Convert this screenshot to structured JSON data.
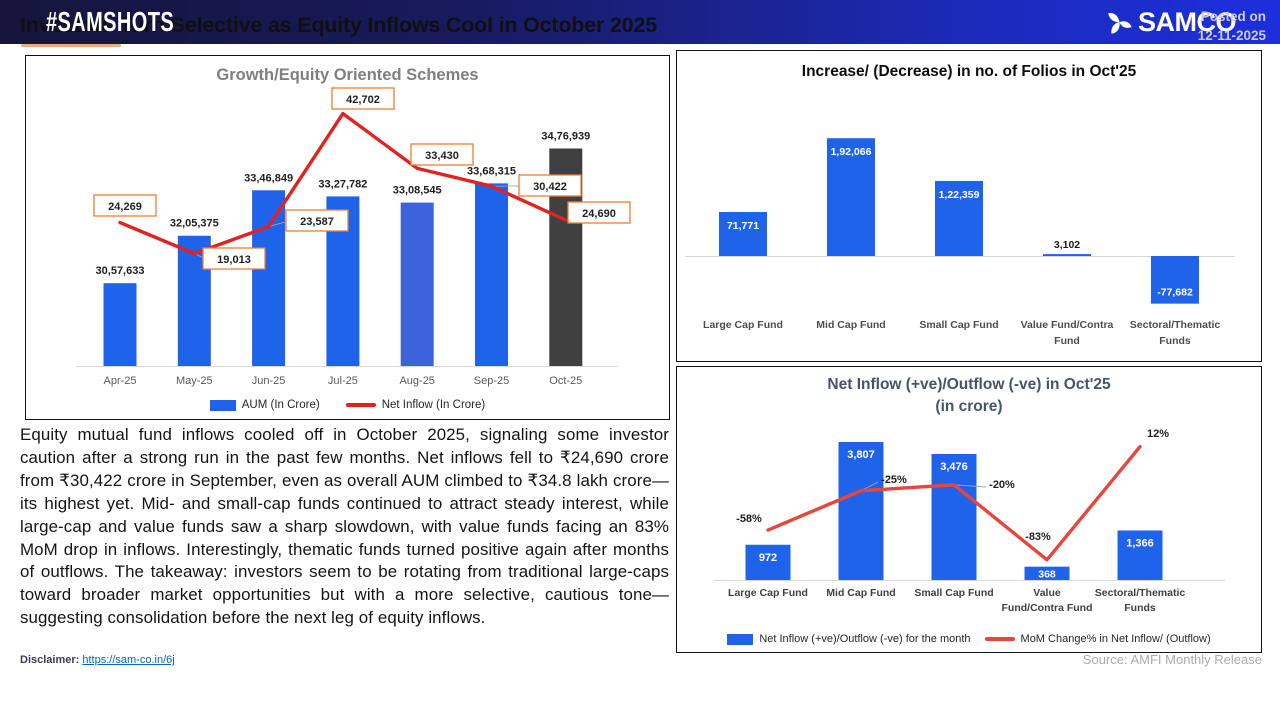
{
  "header": {
    "title": "Investors Turn Selective as Equity Inflows Cool in October 2025",
    "posted_on_label": "Posted on",
    "posted_on_date": "12-11-2025"
  },
  "colors": {
    "bar_blue": "#1F63EB",
    "bar_blue_aug": "#3D63DC",
    "bar_dark": "#404040",
    "line_red": "#E02222",
    "label_box_border": "#ED7D31",
    "axis_gray": "#D9D9D9",
    "leader_gray": "#A6A6A6",
    "accent_underline": "#EDAB83",
    "link_blue": "#0563C1"
  },
  "chart_data": [
    {
      "type": "bar+line",
      "title": "Growth/Equity Oriented Schemes",
      "categories": [
        "Apr-25",
        "May-25",
        "Jun-25",
        "Jul-25",
        "Aug-25",
        "Sep-25",
        "Oct-25"
      ],
      "series": [
        {
          "name": "AUM (In Crore)",
          "type": "bar",
          "values": [
            3057633,
            3205375,
            3346849,
            3327782,
            3308545,
            3368315,
            3476939
          ],
          "labels": [
            "30,57,633",
            "32,05,375",
            "33,46,849",
            "33,27,782",
            "33,08,545",
            "33,68,315",
            "34,76,939"
          ]
        },
        {
          "name": "Net Inflow (In Crore)",
          "type": "line",
          "values": [
            24269,
            19013,
            23587,
            42702,
            33430,
            30422,
            24690
          ],
          "labels": [
            "24,269",
            "19,013",
            "23,587",
            "42,702",
            "33,430",
            "30,422",
            "24,690"
          ]
        }
      ],
      "bar_colors": [
        "#1F63EB",
        "#1F63EB",
        "#1F63EB",
        "#1F63EB",
        "#3D63DC",
        "#1F63EB",
        "#404040"
      ],
      "bar_ylim": [
        2800000,
        3550000
      ],
      "line_ylim": [
        0,
        45000
      ],
      "grid": false,
      "legend_position": "bottom"
    },
    {
      "type": "bar",
      "title": "Increase/ (Decrease) in no. of Folios in Oct'25",
      "categories": [
        "Large Cap Fund",
        "Mid Cap Fund",
        "Small Cap Fund",
        "Value Fund/Contra Fund",
        "Sectoral/Thematic Funds"
      ],
      "category_lines": [
        [
          "Large Cap Fund"
        ],
        [
          "Mid Cap Fund"
        ],
        [
          "Small Cap Fund"
        ],
        [
          "Value Fund/Contra",
          "Fund"
        ],
        [
          "Sectoral/Thematic",
          "Funds"
        ]
      ],
      "values": [
        71771,
        192066,
        122359,
        3102,
        -77682
      ],
      "labels": [
        "71,771",
        "1,92,066",
        "1,22,359",
        "3,102",
        "-77,682"
      ],
      "bar_color": "#1F63EB",
      "ylim": [
        -100000,
        200000
      ],
      "grid": false,
      "legend_position": "none"
    },
    {
      "type": "bar+line",
      "title": "Net Inflow (+ve)/Outflow (-ve) in Oct'25",
      "subtitle": "(in crore)",
      "categories": [
        "Large Cap Fund",
        "Mid Cap Fund",
        "Small Cap Fund",
        "Value Fund/Contra Fund",
        "Sectoral/Thematic Funds"
      ],
      "category_lines": [
        [
          "Large Cap Fund"
        ],
        [
          "Mid Cap Fund"
        ],
        [
          "Small Cap Fund"
        ],
        [
          "Value",
          "Fund/Contra Fund"
        ],
        [
          "Sectoral/Thematic",
          "Funds"
        ]
      ],
      "series": [
        {
          "name": "Net Inflow (+ve)/Outflow (-ve) for the month",
          "type": "bar",
          "values": [
            972,
            3807,
            3476,
            368,
            1366
          ],
          "labels": [
            "972",
            "3,807",
            "3,476",
            "368",
            "1,366"
          ]
        },
        {
          "name": "MoM Change% in Net Inflow/ (Outflow)",
          "type": "line",
          "values": [
            -58,
            -25,
            -20,
            -83,
            12
          ],
          "labels": [
            "-58%",
            "-25%",
            "-20%",
            "-83%",
            "12%"
          ]
        }
      ],
      "bar_color": "#1F63EB",
      "bar_ylim": [
        0,
        4000
      ],
      "line_ylim": [
        -100,
        20
      ],
      "grid": false,
      "legend_position": "bottom"
    }
  ],
  "paragraph": "Equity mutual fund inflows cooled off in October 2025, signaling some investor caution after a strong run in the past few months. Net inflows fell to ₹24,690 crore from ₹30,422 crore in September, even as overall AUM climbed to ₹34.8 lakh crore—its highest yet. Mid- and small-cap funds continued to attract steady interest, while large-cap and value funds saw a sharp slowdown, with value funds facing an 83% MoM drop in inflows. Interestingly, thematic funds turned positive again after months of outflows. The takeaway: investors seem to be rotating from traditional large-caps toward broader market opportunities but with a more selective, cautious tone—suggesting consolidation before the next leg of equity inflows.",
  "disclaimer": {
    "label": "Disclaimer:",
    "link_text": "https://sam-co.in/6j"
  },
  "source": "Source: AMFI Monthly Release",
  "footer": {
    "hashtag": "#SAMSHOTS",
    "brand": "SAMCO"
  }
}
